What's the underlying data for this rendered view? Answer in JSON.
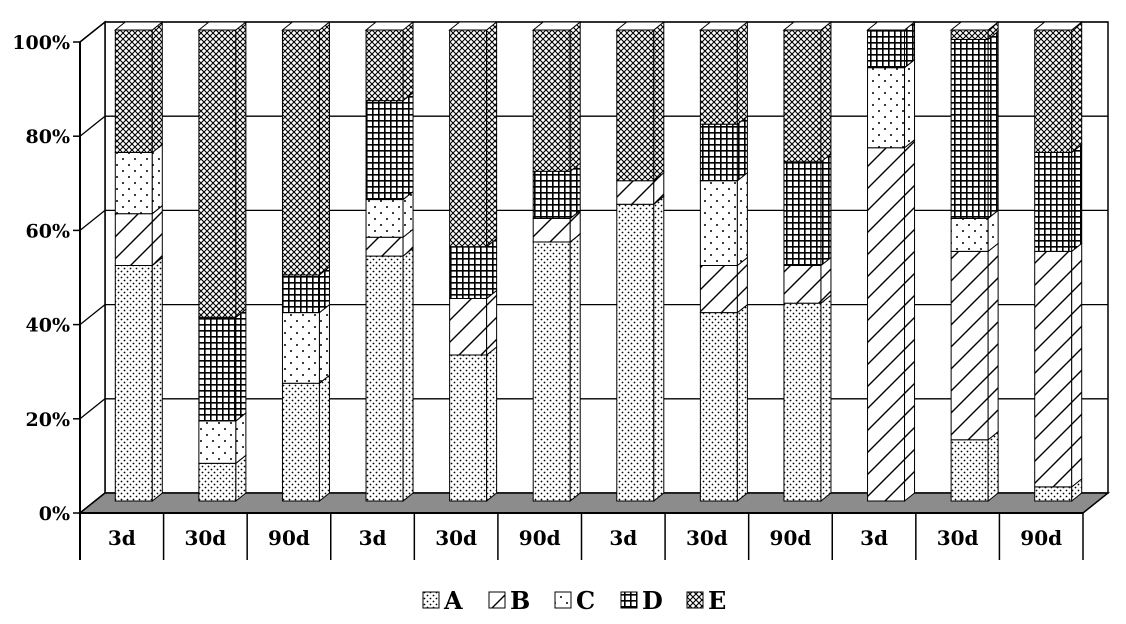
{
  "chart_data": {
    "type": "bar",
    "stacked": true,
    "percent_stacked": true,
    "three_d": true,
    "categories": [
      "3d",
      "30d",
      "90d",
      "3d",
      "30d",
      "90d",
      "3d",
      "30d",
      "90d",
      "3d",
      "30d",
      "90d"
    ],
    "series": [
      {
        "name": "A",
        "pattern": "dots",
        "values": [
          50,
          8,
          25,
          52,
          31,
          55,
          63,
          40,
          42,
          0,
          13,
          3
        ]
      },
      {
        "name": "B",
        "pattern": "diagonal",
        "values": [
          11,
          0,
          0,
          4,
          12,
          5,
          5,
          10,
          8,
          75,
          40,
          50
        ]
      },
      {
        "name": "C",
        "pattern": "sparse-dots",
        "values": [
          13,
          9,
          15,
          8,
          0,
          0,
          0,
          18,
          0,
          17,
          7,
          0
        ]
      },
      {
        "name": "D",
        "pattern": "grid",
        "values": [
          0,
          22,
          8,
          21,
          11,
          10,
          0,
          12,
          22,
          8,
          38,
          21
        ]
      },
      {
        "name": "E",
        "pattern": "crosshatch",
        "values": [
          26,
          61,
          52,
          15,
          46,
          30,
          32,
          20,
          28,
          0,
          2,
          26
        ]
      }
    ],
    "y_ticks": [
      "0%",
      "20%",
      "40%",
      "60%",
      "80%",
      "100%"
    ],
    "ylim": [
      0,
      100
    ],
    "grid": true,
    "legend_position": "bottom",
    "colors": {
      "wall": "#ffffff",
      "floor": "#8c8c8c",
      "stroke": "#000000"
    }
  }
}
